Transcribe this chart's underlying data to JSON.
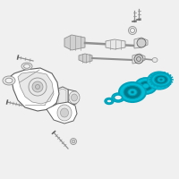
{
  "bg_color": "#f0f0f0",
  "highlight_color": "#00a0b8",
  "highlight_fill": "#00bcd4",
  "highlight_dark": "#007a8a",
  "highlight_mid": "#0090a8",
  "outline_color": "#909090",
  "dark_outline": "#606060",
  "white": "#ffffff",
  "light_gray": "#e8e8e8",
  "mid_gray": "#d0d0d0",
  "part_gray": "#c8c8c8"
}
